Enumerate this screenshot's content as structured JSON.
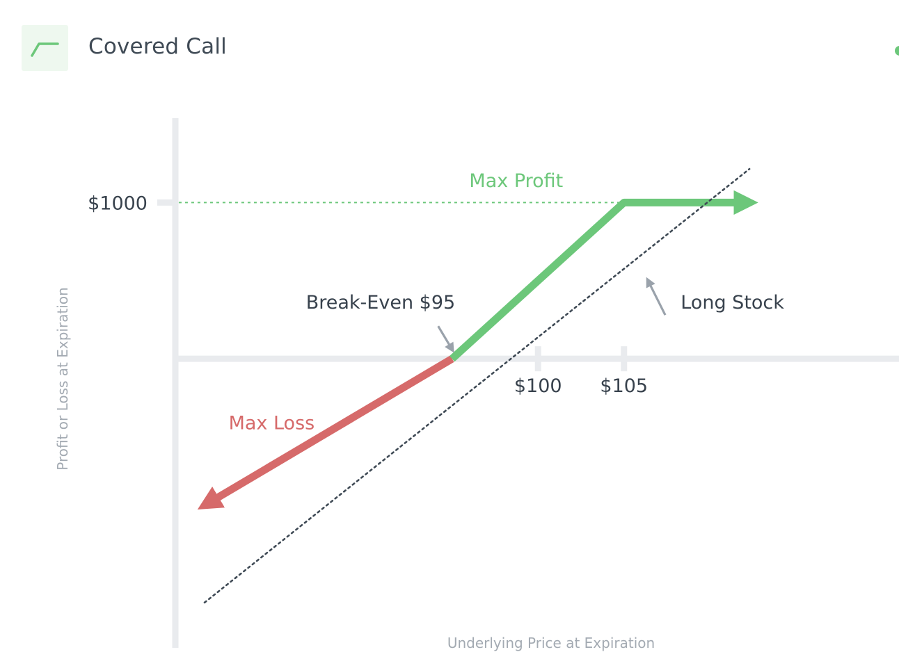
{
  "header": {
    "title": "Covered Call",
    "icon": "covered-call-payoff-icon"
  },
  "colors": {
    "profit": "#6cc77a",
    "loss": "#d66a6a",
    "stock": "#3f4a55",
    "axis": "#e9ebee",
    "pointer": "#9aa2ab",
    "badge_bg": "#eef8ef"
  },
  "chart_data": {
    "type": "line",
    "title": "",
    "xlabel": "Underlying Price at Expiration",
    "ylabel": "Profit or Loss at Expiration",
    "x_ticks": [
      {
        "value": 100,
        "label": "$100"
      },
      {
        "value": 105,
        "label": "$105"
      }
    ],
    "y_ticks": [
      {
        "value": 1000,
        "label": "$1000"
      }
    ],
    "xlim": [
      78.9,
      121
    ],
    "ylim": [
      -1850,
      1540
    ],
    "grid": false,
    "series": [
      {
        "name": "Covered Call",
        "style": "solid",
        "segments": [
          {
            "role": "loss",
            "points": [
              [
                80.8,
                -925
              ],
              [
                95,
                0
              ]
            ]
          },
          {
            "role": "profit",
            "points": [
              [
                95,
                0
              ],
              [
                105,
                1000
              ],
              [
                112.1,
                1000
              ]
            ]
          }
        ],
        "arrows": "both-ends"
      },
      {
        "name": "Long Stock",
        "style": "dotted",
        "points": [
          [
            80.6,
            -1560
          ],
          [
            112.3,
            1215
          ]
        ]
      }
    ],
    "reference_lines": [
      {
        "type": "horizontal",
        "y": 1000,
        "x_from": 79.1,
        "x_to": 105,
        "style": "dotted",
        "color_role": "profit"
      }
    ],
    "annotations": [
      {
        "text": "Max Profit",
        "x": 96,
        "y": 1100,
        "color_role": "profit"
      },
      {
        "text": "Max Loss",
        "x": 82,
        "y": -450,
        "color_role": "loss"
      },
      {
        "text": "Break-Even $95",
        "x": 86.5,
        "y": 320,
        "color_role": "dark",
        "pointer_to": [
          95,
          60
        ]
      },
      {
        "text": "Long Stock",
        "x": 108.3,
        "y": 320,
        "color_role": "dark",
        "pointer_from": [
          107.4,
          280
        ],
        "pointer_to": [
          106.4,
          500
        ]
      }
    ]
  }
}
